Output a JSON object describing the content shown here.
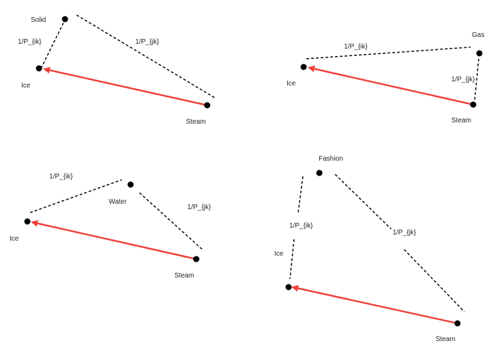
{
  "colors": {
    "arrow": "#f0403a",
    "node": "#000000",
    "edge": "#000000"
  },
  "panels": [
    {
      "nodes": {
        "a": "Solid",
        "ice": "Ice",
        "steam": "Steam"
      },
      "edge_labels": {
        "ice_a": "1/P_{ik}",
        "a_steam": "1/P_{jk}"
      }
    },
    {
      "nodes": {
        "a": "Gas",
        "ice": "Ice",
        "steam": "Steam"
      },
      "edge_labels": {
        "ice_a": "1/P_{ik}",
        "a_steam": "1/P_{jk}"
      }
    },
    {
      "nodes": {
        "a": "Water",
        "ice": "Ice",
        "steam": "Steam"
      },
      "edge_labels": {
        "ice_a": "1/P_{ik}",
        "a_steam": "1/P_{jk}"
      }
    },
    {
      "nodes": {
        "a": "Fashion",
        "ice": "Ice",
        "steam": "Steam"
      },
      "edge_labels": {
        "ice_a": "1/P_{ik}",
        "a_steam": "1/P_{jk}"
      }
    }
  ]
}
